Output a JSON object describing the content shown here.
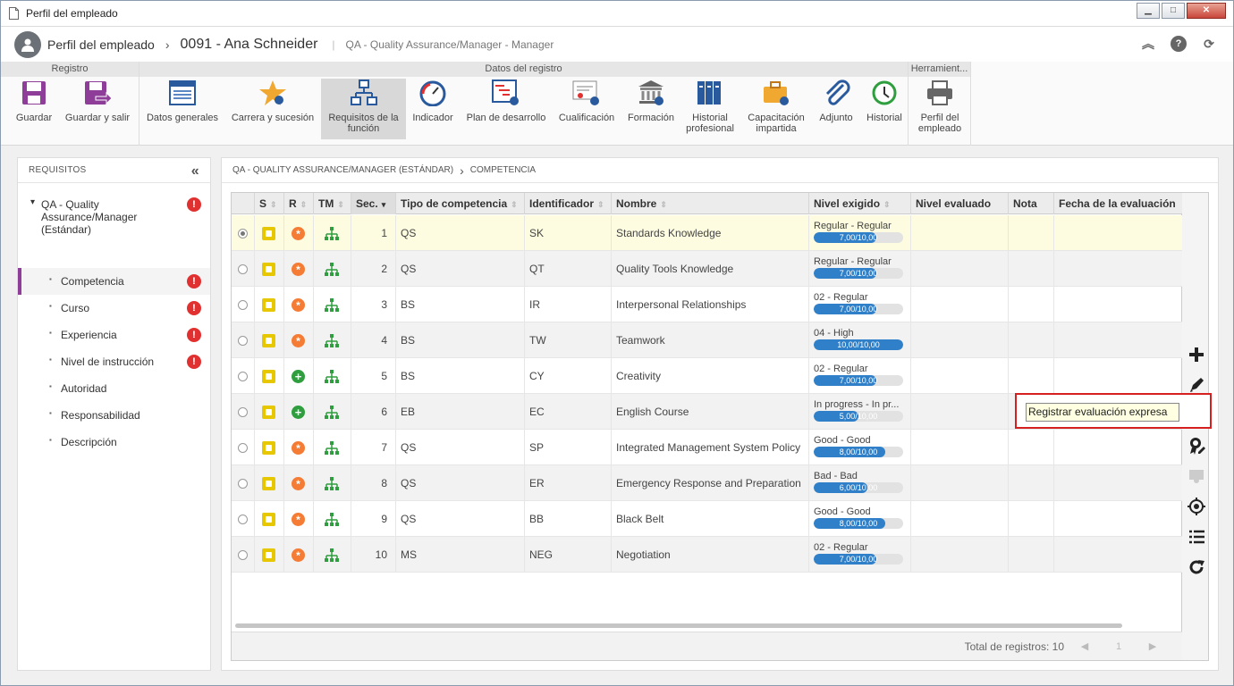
{
  "window": {
    "title": "Perfil del empleado",
    "btn_min": "▁",
    "btn_max": "□",
    "btn_close": "✕"
  },
  "header": {
    "title": "Perfil del empleado",
    "sep": "›",
    "employee": "0091 - Ana Schneider",
    "bar": "|",
    "subtitle": "QA - Quality Assurance/Manager - Manager",
    "icon_collapse": "︽",
    "icon_help": "?",
    "icon_refresh": "⟳"
  },
  "ribbon": {
    "groups": [
      "Registro",
      "Datos del registro",
      "Herramient..."
    ],
    "buttons": {
      "save": "Guardar",
      "save_exit": "Guardar y salir",
      "general": "Datos generales",
      "career": "Carrera y sucesión",
      "req1": "Requisitos de la",
      "req2": "función",
      "indicator": "Indicador",
      "devplan": "Plan de desarrollo",
      "qualif": "Cualificación",
      "training": "Formación",
      "hist1": "Historial",
      "hist2": "profesional",
      "cap1": "Capacitación",
      "cap2": "impartida",
      "attach": "Adjunto",
      "history": "Historial",
      "profile1": "Perfil del",
      "profile2": "empleado"
    }
  },
  "left_panel": {
    "header": "REQUISITOS",
    "collapse": "«",
    "root": "QA - Quality Assurance/Manager (Estándar)",
    "root_toggle": "▾",
    "bullet": "▪",
    "err": "!",
    "items": [
      "Competencia",
      "Curso",
      "Experiencia",
      "Nivel de instrucción",
      "Autoridad",
      "Responsabilidad",
      "Descripción"
    ]
  },
  "breadcrumb": {
    "first": "QA - QUALITY ASSURANCE/MANAGER (ESTÁNDAR)",
    "sep": "›",
    "second": "COMPETENCIA"
  },
  "table": {
    "headers": [
      "S",
      "R",
      "TM",
      "Sec.",
      "Tipo de competencia",
      "Identificador",
      "Nombre",
      "Nivel exigido",
      "Nivel evaluado",
      "Nota",
      "Fecha de la evaluación"
    ],
    "sort_icon": "⇕",
    "sort_desc": "▾",
    "rows": [
      {
        "seq": "1",
        "type": "QS",
        "id": "SK",
        "name": "Standards Knowledge",
        "level": "Regular - Regular",
        "bar": "7,00/10,00",
        "pct": 70,
        "r": "orange"
      },
      {
        "seq": "2",
        "type": "QS",
        "id": "QT",
        "name": "Quality Tools Knowledge",
        "level": "Regular - Regular",
        "bar": "7,00/10,00",
        "pct": 70,
        "r": "orange"
      },
      {
        "seq": "3",
        "type": "BS",
        "id": "IR",
        "name": "Interpersonal Relationships",
        "level": "02 - Regular",
        "bar": "7,00/10,00",
        "pct": 70,
        "r": "orange"
      },
      {
        "seq": "4",
        "type": "BS",
        "id": "TW",
        "name": "Teamwork",
        "level": "04 - High",
        "bar": "10,00/10,00",
        "pct": 100,
        "r": "orange"
      },
      {
        "seq": "5",
        "type": "BS",
        "id": "CY",
        "name": "Creativity",
        "level": "02 - Regular",
        "bar": "7,00/10,00",
        "pct": 70,
        "r": "green"
      },
      {
        "seq": "6",
        "type": "EB",
        "id": "EC",
        "name": "English Course",
        "level": "In progress - In pr...",
        "bar": "5,00/10,00",
        "pct": 50,
        "r": "green"
      },
      {
        "seq": "7",
        "type": "QS",
        "id": "SP",
        "name": "Integrated Management System Policy",
        "level": "Good - Good",
        "bar": "8,00/10,00",
        "pct": 80,
        "r": "orange"
      },
      {
        "seq": "8",
        "type": "QS",
        "id": "ER",
        "name": "Emergency Response and Preparation",
        "level": "Bad - Bad",
        "bar": "6,00/10,00",
        "pct": 60,
        "r": "orange"
      },
      {
        "seq": "9",
        "type": "QS",
        "id": "BB",
        "name": "Black Belt",
        "level": "Good - Good",
        "bar": "8,00/10,00",
        "pct": 80,
        "r": "orange"
      },
      {
        "seq": "10",
        "type": "MS",
        "id": "NEG",
        "name": "Negotiation",
        "level": "02 - Regular",
        "bar": "7,00/10,00",
        "pct": 70,
        "r": "orange"
      }
    ],
    "footer": {
      "total": "Total de registros: 10",
      "prev": "◀",
      "page": "1",
      "next": "▶"
    }
  },
  "tooltip": "Registrar evaluación expresa"
}
